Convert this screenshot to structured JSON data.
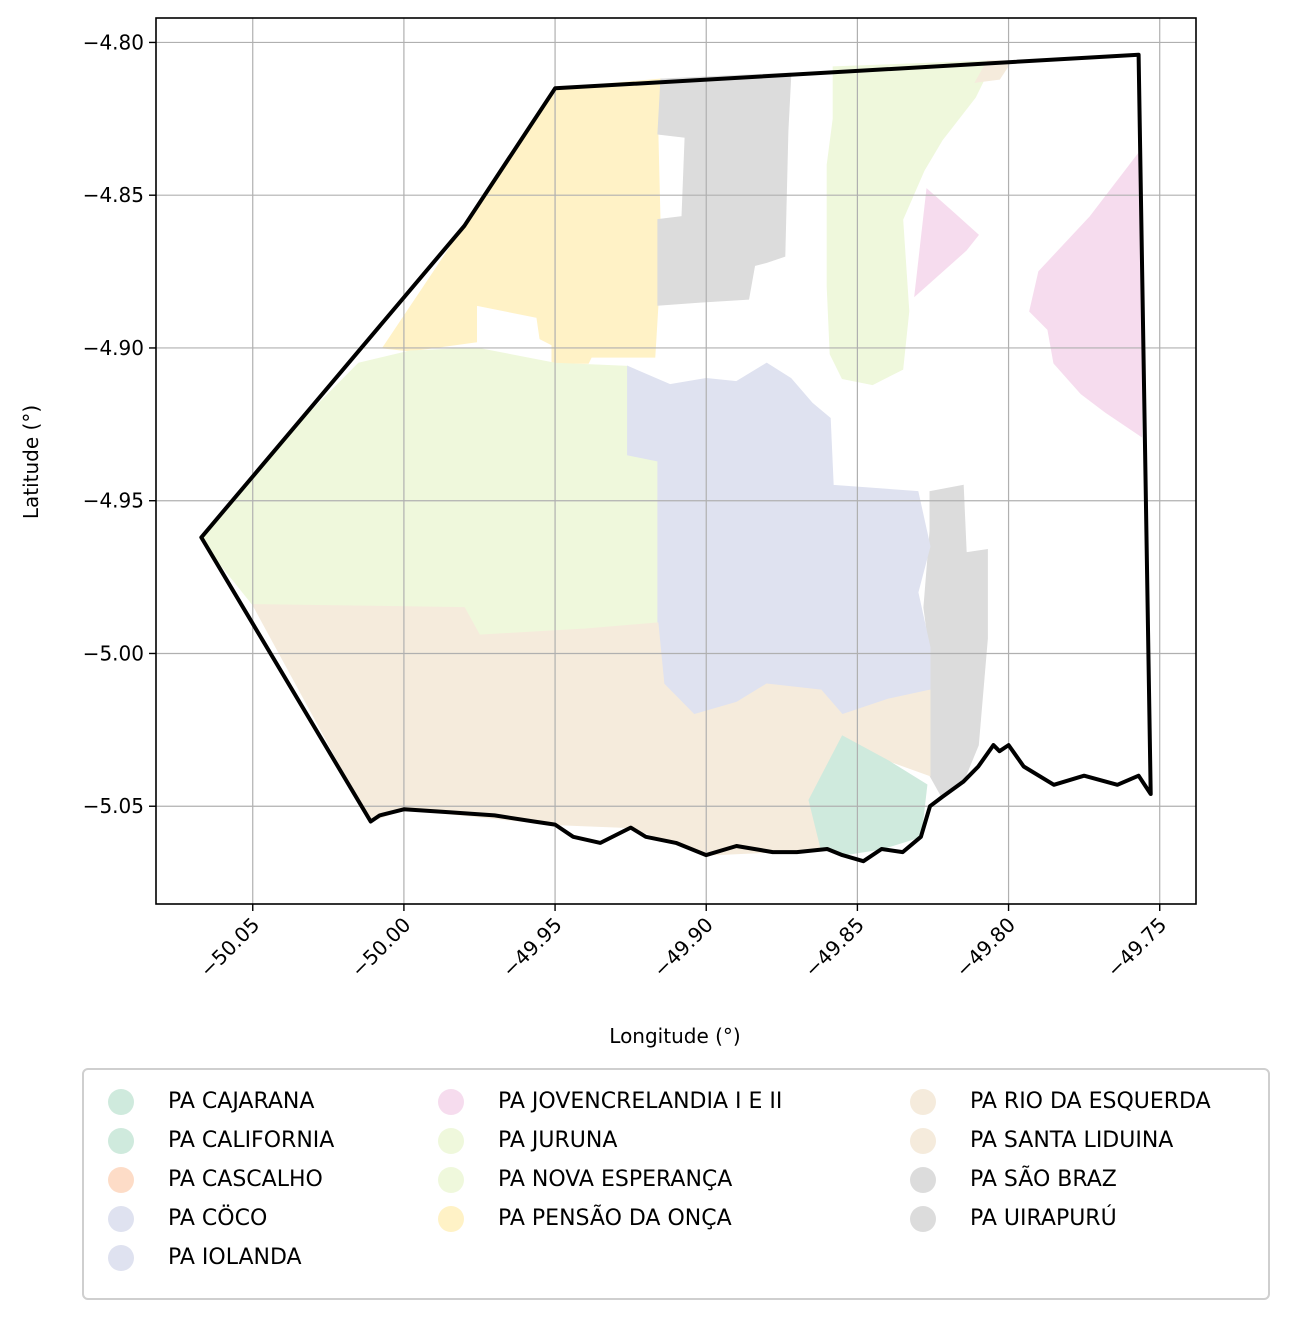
{
  "chart_data": {
    "type": "map",
    "xlabel": "Longitude (°)",
    "ylabel": "Latitude (°)",
    "xlim": [
      -50.082,
      -49.738
    ],
    "ylim": [
      -5.082,
      -4.792
    ],
    "x_ticks": [
      -50.05,
      -50.0,
      -49.95,
      -49.9,
      -49.85,
      -49.8,
      -49.75
    ],
    "x_tick_labels": [
      "−50.05",
      "−50.00",
      "−49.95",
      "−49.90",
      "−49.85",
      "−49.80",
      "−49.75"
    ],
    "y_ticks": [
      -4.8,
      -4.85,
      -4.9,
      -4.95,
      -5.0,
      -5.05
    ],
    "y_tick_labels": [
      "−4.80",
      "−4.85",
      "−4.90",
      "−4.95",
      "−5.00",
      "−5.05"
    ],
    "grid": true,
    "legend_position": "bottom",
    "boundary": [
      [
        -49.95,
        -4.815
      ],
      [
        -49.757,
        -4.804
      ],
      [
        -49.753,
        -5.046
      ],
      [
        -49.757,
        -5.04
      ],
      [
        -49.764,
        -5.043
      ],
      [
        -49.775,
        -5.04
      ],
      [
        -49.785,
        -5.043
      ],
      [
        -49.795,
        -5.037
      ],
      [
        -49.8,
        -5.03
      ],
      [
        -49.803,
        -5.032
      ],
      [
        -49.805,
        -5.03
      ],
      [
        -49.81,
        -5.037
      ],
      [
        -49.815,
        -5.042
      ],
      [
        -49.822,
        -5.047
      ],
      [
        -49.826,
        -5.05
      ],
      [
        -49.829,
        -5.06
      ],
      [
        -49.835,
        -5.065
      ],
      [
        -49.842,
        -5.064
      ],
      [
        -49.848,
        -5.068
      ],
      [
        -49.855,
        -5.066
      ],
      [
        -49.86,
        -5.064
      ],
      [
        -49.87,
        -5.065
      ],
      [
        -49.878,
        -5.065
      ],
      [
        -49.89,
        -5.063
      ],
      [
        -49.9,
        -5.066
      ],
      [
        -49.91,
        -5.062
      ],
      [
        -49.92,
        -5.06
      ],
      [
        -49.925,
        -5.057
      ],
      [
        -49.935,
        -5.062
      ],
      [
        -49.944,
        -5.06
      ],
      [
        -49.95,
        -5.056
      ],
      [
        -49.957,
        -5.055
      ],
      [
        -49.97,
        -5.053
      ],
      [
        -49.985,
        -5.052
      ],
      [
        -50.0,
        -5.051
      ],
      [
        -50.008,
        -5.053
      ],
      [
        -50.011,
        -5.055
      ],
      [
        -50.067,
        -4.962
      ],
      [
        -49.98,
        -4.86
      ],
      [
        -49.95,
        -4.815
      ]
    ],
    "regions": [
      {
        "name": "PA PENSÃO DA ONÇA",
        "color": "#fff2c6",
        "polygon": [
          [
            -49.95,
            -4.815
          ],
          [
            -49.915,
            -4.812
          ],
          [
            -49.916,
            -4.83
          ],
          [
            -49.915,
            -4.87
          ],
          [
            -49.917,
            -4.903
          ],
          [
            -49.938,
            -4.903
          ],
          [
            -49.939,
            -4.905
          ],
          [
            -49.951,
            -4.905
          ],
          [
            -49.951,
            -4.899
          ],
          [
            -49.955,
            -4.897
          ],
          [
            -49.956,
            -4.89
          ],
          [
            -49.976,
            -4.886
          ],
          [
            -49.976,
            -4.898
          ],
          [
            -49.998,
            -4.901
          ],
          [
            -50.007,
            -4.9
          ],
          [
            -49.98,
            -4.86
          ]
        ]
      },
      {
        "name": "PA SÃO BRAZ",
        "color": "#dcdcdc",
        "polygon": [
          [
            -49.915,
            -4.812
          ],
          [
            -49.872,
            -4.81
          ],
          [
            -49.873,
            -4.829
          ],
          [
            -49.874,
            -4.87
          ],
          [
            -49.88,
            -4.872
          ],
          [
            -49.884,
            -4.873
          ],
          [
            -49.886,
            -4.884
          ],
          [
            -49.902,
            -4.885
          ],
          [
            -49.916,
            -4.886
          ],
          [
            -49.916,
            -4.858
          ],
          [
            -49.908,
            -4.857
          ],
          [
            -49.907,
            -4.831
          ],
          [
            -49.916,
            -4.83
          ]
        ]
      },
      {
        "name": "PA UIRAPURÚ",
        "color": "#dcdcdc",
        "polygon": [
          [
            -49.826,
            -4.947
          ],
          [
            -49.815,
            -4.945
          ],
          [
            -49.814,
            -4.967
          ],
          [
            -49.807,
            -4.966
          ],
          [
            -49.807,
            -4.995
          ],
          [
            -49.81,
            -5.03
          ],
          [
            -49.815,
            -5.042
          ],
          [
            -49.822,
            -5.047
          ],
          [
            -49.826,
            -5.04
          ],
          [
            -49.826,
            -5.0
          ],
          [
            -49.828,
            -4.985
          ],
          [
            -49.826,
            -4.96
          ]
        ]
      },
      {
        "name": "PA JURUNA",
        "color": "#eff8dc",
        "polygon": [
          [
            -49.858,
            -4.808
          ],
          [
            -49.805,
            -4.806
          ],
          [
            -49.811,
            -4.818
          ],
          [
            -49.822,
            -4.832
          ],
          [
            -49.828,
            -4.842
          ],
          [
            -49.835,
            -4.858
          ],
          [
            -49.833,
            -4.888
          ],
          [
            -49.835,
            -4.907
          ],
          [
            -49.845,
            -4.912
          ],
          [
            -49.855,
            -4.91
          ],
          [
            -49.859,
            -4.902
          ],
          [
            -49.86,
            -4.88
          ],
          [
            -49.86,
            -4.84
          ],
          [
            -49.858,
            -4.825
          ]
        ]
      },
      {
        "name": "PA JOVENCRELANDIA I E II",
        "color": "#f6dcee",
        "polygon": [
          [
            -49.827,
            -4.848
          ],
          [
            -49.819,
            -4.855
          ],
          [
            -49.81,
            -4.863
          ],
          [
            -49.814,
            -4.868
          ],
          [
            -49.831,
            -4.883
          ],
          [
            -49.827,
            -4.848
          ]
        ]
      },
      {
        "name": "PA JOVENCRELANDIA I E II",
        "color": "#f6dcee",
        "polygon": [
          [
            -49.756,
            -4.835
          ],
          [
            -49.773,
            -4.857
          ],
          [
            -49.79,
            -4.875
          ],
          [
            -49.793,
            -4.888
          ],
          [
            -49.787,
            -4.894
          ],
          [
            -49.785,
            -4.905
          ],
          [
            -49.776,
            -4.915
          ],
          [
            -49.768,
            -4.921
          ],
          [
            -49.756,
            -4.929
          ]
        ]
      },
      {
        "name": "PA NOVA ESPERANÇA",
        "color": "#eff8dc",
        "polygon": [
          [
            -49.95,
            -4.905
          ],
          [
            -49.926,
            -4.906
          ],
          [
            -49.926,
            -4.935
          ],
          [
            -49.916,
            -4.937
          ],
          [
            -49.916,
            -4.99
          ],
          [
            -49.94,
            -4.992
          ],
          [
            -49.975,
            -4.994
          ],
          [
            -49.98,
            -4.985
          ],
          [
            -50.05,
            -4.984
          ],
          [
            -50.063,
            -4.968
          ],
          [
            -50.067,
            -4.962
          ],
          [
            -50.04,
            -4.93
          ],
          [
            -50.015,
            -4.905
          ],
          [
            -49.998,
            -4.901
          ],
          [
            -49.976,
            -4.9
          ]
        ]
      },
      {
        "name": "PA IOLANDA",
        "color": "#dfe2f0",
        "polygon": [
          [
            -49.926,
            -4.906
          ],
          [
            -49.912,
            -4.912
          ],
          [
            -49.9,
            -4.91
          ],
          [
            -49.89,
            -4.911
          ],
          [
            -49.88,
            -4.905
          ],
          [
            -49.872,
            -4.91
          ],
          [
            -49.865,
            -4.918
          ],
          [
            -49.859,
            -4.923
          ],
          [
            -49.858,
            -4.945
          ],
          [
            -49.83,
            -4.947
          ],
          [
            -49.826,
            -4.965
          ],
          [
            -49.83,
            -4.98
          ],
          [
            -49.826,
            -4.998
          ],
          [
            -49.826,
            -5.012
          ],
          [
            -49.84,
            -5.015
          ],
          [
            -49.855,
            -5.02
          ],
          [
            -49.862,
            -5.012
          ],
          [
            -49.88,
            -5.01
          ],
          [
            -49.89,
            -5.016
          ],
          [
            -49.904,
            -5.02
          ],
          [
            -49.914,
            -5.01
          ],
          [
            -49.916,
            -4.99
          ],
          [
            -49.916,
            -4.937
          ],
          [
            -49.926,
            -4.935
          ]
        ]
      },
      {
        "name": "PA RIO DA ESQUERDA",
        "color": "#f5ebdc",
        "polygon": [
          [
            -50.05,
            -4.984
          ],
          [
            -49.98,
            -4.985
          ],
          [
            -49.975,
            -4.994
          ],
          [
            -49.94,
            -4.992
          ],
          [
            -49.916,
            -4.99
          ],
          [
            -49.914,
            -5.01
          ],
          [
            -49.904,
            -5.02
          ],
          [
            -49.89,
            -5.016
          ],
          [
            -49.88,
            -5.01
          ],
          [
            -49.862,
            -5.012
          ],
          [
            -49.855,
            -5.02
          ],
          [
            -49.84,
            -5.015
          ],
          [
            -49.826,
            -5.012
          ],
          [
            -49.826,
            -5.04
          ],
          [
            -49.84,
            -5.035
          ],
          [
            -49.855,
            -5.027
          ],
          [
            -49.866,
            -5.048
          ],
          [
            -49.862,
            -5.064
          ],
          [
            -49.878,
            -5.065
          ],
          [
            -49.9,
            -5.066
          ],
          [
            -49.925,
            -5.057
          ],
          [
            -49.95,
            -5.056
          ],
          [
            -50.0,
            -5.051
          ],
          [
            -50.011,
            -5.055
          ]
        ]
      },
      {
        "name": "PA CAJARANA",
        "color": "#cfeadd",
        "polygon": [
          [
            -49.855,
            -5.027
          ],
          [
            -49.84,
            -5.035
          ],
          [
            -49.827,
            -5.043
          ],
          [
            -49.829,
            -5.06
          ],
          [
            -49.842,
            -5.064
          ],
          [
            -49.855,
            -5.066
          ],
          [
            -49.862,
            -5.064
          ],
          [
            -49.866,
            -5.048
          ]
        ]
      },
      {
        "name": "PA SANTA LIDUINA",
        "color": "#f5ebdc",
        "polygon": [
          [
            -49.807,
            -4.806
          ],
          [
            -49.799,
            -4.806
          ],
          [
            -49.803,
            -4.812
          ],
          [
            -49.811,
            -4.813
          ]
        ]
      }
    ],
    "legend": [
      {
        "label": "PA CAJARANA",
        "color": "#cfeadd"
      },
      {
        "label": "PA CALIFORNIA",
        "color": "#cfeadd"
      },
      {
        "label": "PA CASCALHO",
        "color": "#fddcc7"
      },
      {
        "label": "PA CÖCO",
        "color": "#dfe2f0"
      },
      {
        "label": "PA IOLANDA",
        "color": "#dfe2f0"
      },
      {
        "label": "PA JOVENCRELANDIA I E II",
        "color": "#f6dcee"
      },
      {
        "label": "PA JURUNA",
        "color": "#eff8dc"
      },
      {
        "label": "PA NOVA ESPERANÇA",
        "color": "#eff8dc"
      },
      {
        "label": "PA PENSÃO DA ONÇA",
        "color": "#fff2c6"
      },
      {
        "label": "PA RIO DA ESQUERDA",
        "color": "#f5ebdc"
      },
      {
        "label": "PA SANTA LIDUINA",
        "color": "#f5ebdc"
      },
      {
        "label": "PA SÃO BRAZ",
        "color": "#dcdcdc"
      },
      {
        "label": "PA UIRAPURÚ",
        "color": "#dcdcdc"
      }
    ]
  }
}
